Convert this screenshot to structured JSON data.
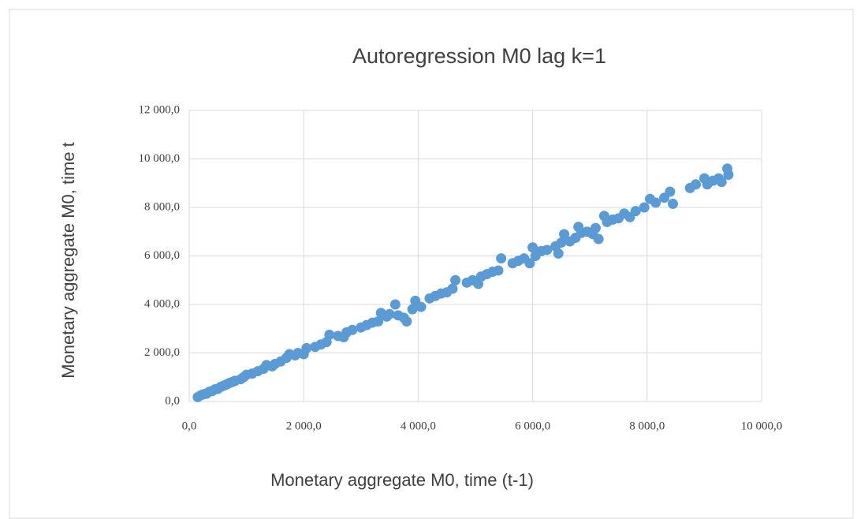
{
  "chart_data": {
    "type": "scatter",
    "title": "Autoregression M0 lag k=1",
    "x_label": "Monetary aggregate M0, time (t-1)",
    "y_label": "Monetary aggregate M0, time t",
    "color": "#5b9bd5",
    "grid": true,
    "xlim": [
      0,
      10000
    ],
    "ylim": [
      0,
      12000
    ],
    "xticks": [
      {
        "value": 0,
        "label": "0,0"
      },
      {
        "value": 2000,
        "label": "2 000,0"
      },
      {
        "value": 4000,
        "label": "4 000,0"
      },
      {
        "value": 6000,
        "label": "6 000,0"
      },
      {
        "value": 8000,
        "label": "8 000,0"
      },
      {
        "value": 10000,
        "label": "10 000,0"
      }
    ],
    "yticks": [
      {
        "value": 0,
        "label": "0,0"
      },
      {
        "value": 2000,
        "label": "2 000,0"
      },
      {
        "value": 4000,
        "label": "4 000,0"
      },
      {
        "value": 6000,
        "label": "6 000,0"
      },
      {
        "value": 8000,
        "label": "8 000,0"
      },
      {
        "value": 10000,
        "label": "10 000,0"
      },
      {
        "value": 12000,
        "label": "12 000,0"
      }
    ],
    "x": [
      150,
      200,
      250,
      300,
      350,
      400,
      450,
      500,
      550,
      600,
      650,
      700,
      750,
      800,
      900,
      950,
      1000,
      1100,
      1200,
      1300,
      1350,
      1450,
      1500,
      1600,
      1700,
      1750,
      1850,
      1900,
      2000,
      2050,
      2200,
      2300,
      2400,
      2450,
      2600,
      2700,
      2750,
      2850,
      3000,
      3100,
      3200,
      3300,
      3350,
      3450,
      3500,
      3600,
      3650,
      3750,
      3800,
      3900,
      3950,
      4050,
      4200,
      4300,
      4400,
      4500,
      4600,
      4650,
      4850,
      4950,
      5050,
      5100,
      5200,
      5300,
      5400,
      5450,
      5650,
      5750,
      5850,
      5950,
      6000,
      6050,
      6150,
      6250,
      6400,
      6450,
      6500,
      6550,
      6650,
      6750,
      6800,
      6850,
      6950,
      7050,
      7100,
      7150,
      7250,
      7300,
      7400,
      7500,
      7600,
      7700,
      7800,
      7950,
      8050,
      8150,
      8300,
      8400,
      8450,
      8750,
      8850,
      9000,
      9050,
      9150,
      9250,
      9300,
      9400,
      9420
    ],
    "values": [
      180,
      250,
      300,
      320,
      400,
      430,
      500,
      520,
      600,
      650,
      700,
      760,
      800,
      850,
      920,
      1000,
      1100,
      1150,
      1250,
      1350,
      1500,
      1450,
      1550,
      1650,
      1800,
      1950,
      1900,
      2000,
      1950,
      2200,
      2250,
      2350,
      2450,
      2750,
      2700,
      2650,
      2850,
      2950,
      3050,
      3150,
      3250,
      3300,
      3650,
      3500,
      3600,
      4000,
      3550,
      3450,
      3300,
      3800,
      4150,
      3900,
      4250,
      4350,
      4450,
      4500,
      4650,
      5000,
      4900,
      5000,
      4850,
      5150,
      5250,
      5350,
      5400,
      5900,
      5700,
      5800,
      5900,
      5700,
      6350,
      6000,
      6200,
      6250,
      6400,
      6100,
      6550,
      6900,
      6600,
      6750,
      7200,
      6950,
      7000,
      6900,
      7150,
      6700,
      7650,
      7400,
      7500,
      7550,
      7750,
      7600,
      7850,
      8000,
      8350,
      8200,
      8400,
      8650,
      8150,
      8800,
      8950,
      9200,
      8950,
      9100,
      9200,
      9050,
      9600,
      9350
    ]
  }
}
